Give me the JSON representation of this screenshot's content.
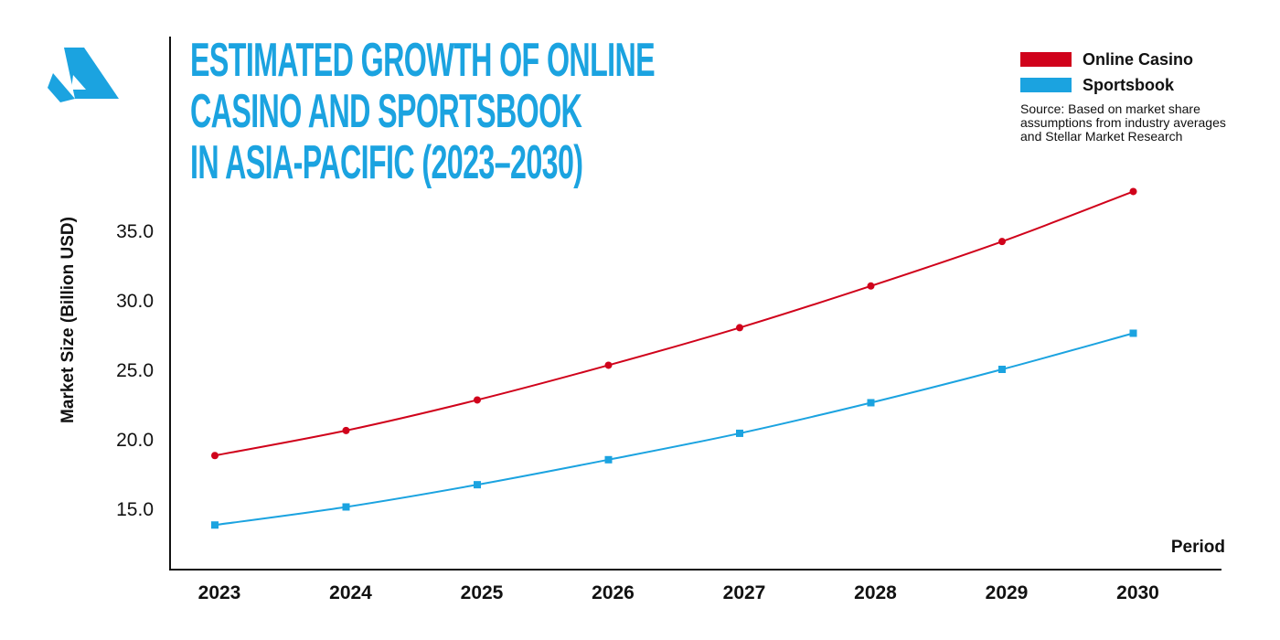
{
  "title_lines": [
    "ESTIMATED GROWTH OF ONLINE",
    "CASINO AND SPORTSBOOK",
    "IN ASIA-PACIFIC (2023–2030)"
  ],
  "logo": {
    "icon": "stylized-a-triangle-logo-icon",
    "color": "#1ba3e0"
  },
  "colors": {
    "title": "#1ba3e0",
    "online_casino": "#d0021b",
    "sportsbook": "#1ba3e0",
    "axis": "#111111"
  },
  "legend": {
    "items": [
      {
        "label": "Online Casino",
        "color": "#d0021b"
      },
      {
        "label": "Sportsbook",
        "color": "#1ba3e0"
      }
    ],
    "source": "Source: Based on market share assumptions from industry averages and Stellar Market Research"
  },
  "chart_data": {
    "type": "line",
    "title": "ESTIMATED GROWTH OF ONLINE CASINO AND SPORTSBOOK IN ASIA-PACIFIC (2023–2030)",
    "xlabel": "Period",
    "ylabel": "Market Size (Billion USD)",
    "categories": [
      "2023",
      "2024",
      "2025",
      "2026",
      "2027",
      "2028",
      "2029",
      "2030"
    ],
    "y_ticks": [
      "15.0",
      "20.0",
      "25.0",
      "30.0",
      "35.0"
    ],
    "ylim": [
      12.5,
      40.0
    ],
    "grid": false,
    "legend_position": "top-right",
    "series": [
      {
        "name": "Online Casino",
        "color": "#d0021b",
        "marker": "circle",
        "values": [
          18.8,
          20.6,
          22.8,
          25.3,
          28.0,
          31.0,
          34.2,
          37.8
        ]
      },
      {
        "name": "Sportsbook",
        "color": "#1ba3e0",
        "marker": "square",
        "values": [
          13.8,
          15.1,
          16.7,
          18.5,
          20.4,
          22.6,
          25.0,
          27.6
        ]
      }
    ]
  }
}
